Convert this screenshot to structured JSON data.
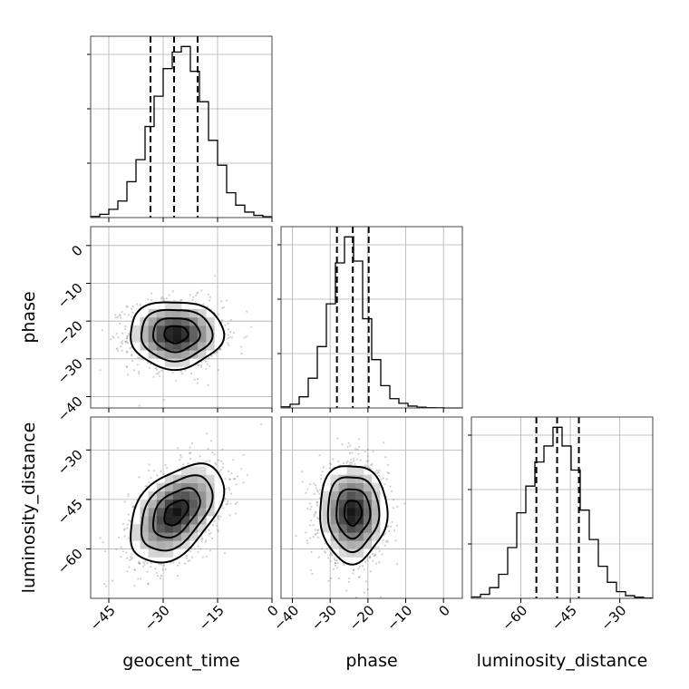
{
  "chart_data": {
    "type": "corner",
    "parameters": [
      "geocent_time",
      "phase",
      "luminosity_distance"
    ],
    "axis_labels": [
      "geocent_time",
      "phase",
      "luminosity_distance"
    ],
    "ranges": {
      "geocent_time": [
        -50,
        0
      ],
      "phase": [
        -43,
        5
      ],
      "luminosity_distance": [
        -75,
        -20
      ]
    },
    "ticks": {
      "geocent_time": {
        "values": [
          -45,
          -30,
          -15,
          0
        ],
        "labels": [
          "−45",
          "−30",
          "−15",
          "0"
        ]
      },
      "phase": {
        "values": [
          -40,
          -30,
          -20,
          -10,
          0
        ],
        "labels": [
          "−40",
          "−30",
          "−20",
          "−10",
          "0"
        ]
      },
      "luminosity_distance": {
        "values": [
          -60,
          -45,
          -30
        ],
        "labels": [
          "−60",
          "−45",
          "−30"
        ]
      }
    },
    "marginals": [
      {
        "parameter": "geocent_time",
        "bin_edges": [
          -50,
          -47.5,
          -45,
          -42.5,
          -40,
          -37.5,
          -35,
          -32.5,
          -30,
          -27.5,
          -25,
          -22.5,
          -20,
          -17.5,
          -15,
          -12.5,
          -10,
          -7.5,
          -5,
          -2.5,
          0
        ],
        "counts": [
          0.4,
          1.2,
          3,
          6,
          13,
          21,
          33,
          44,
          54,
          60,
          62,
          53,
          42,
          28,
          19,
          9,
          4.5,
          2,
          0.8,
          0.3
        ],
        "quantiles": [
          -33.5,
          -27.0,
          -20.5
        ]
      },
      {
        "parameter": "phase",
        "bin_edges": [
          -43,
          -40.6,
          -38.2,
          -35.8,
          -33.4,
          -31,
          -28.6,
          -26.2,
          -23.8,
          -21.4,
          -19,
          -16.6,
          -14.2,
          -11.8,
          -9.4,
          -7,
          -4.6,
          -2.2,
          0.2,
          2.6,
          5
        ],
        "counts": [
          0.6,
          2,
          6,
          16,
          33,
          56,
          78,
          92,
          79,
          48,
          26,
          12,
          5,
          2.5,
          1,
          0.4,
          0.2,
          0.1,
          0,
          0
        ],
        "quantiles": [
          -28.2,
          -24.0,
          -19.8
        ]
      },
      {
        "parameter": "luminosity_distance",
        "bin_edges": [
          -75,
          -72.25,
          -69.5,
          -66.75,
          -64,
          -61.25,
          -58.5,
          -55.75,
          -53,
          -50.25,
          -47.5,
          -44.75,
          -42,
          -39.25,
          -36.5,
          -33.75,
          -31,
          -28.25,
          -25.5,
          -22.75,
          -20
        ],
        "counts": [
          0.5,
          1.5,
          4,
          9,
          19,
          32,
          42,
          51,
          57,
          64,
          57,
          48,
          33,
          22,
          12,
          6,
          2.5,
          1,
          0.4,
          0.1
        ],
        "quantiles": [
          -55.3,
          -49.0,
          -42.4
        ]
      }
    ],
    "joints": [
      {
        "x": "geocent_time",
        "y": "phase",
        "center": [
          -26.5,
          -23.5
        ],
        "sigma": [
          6.5,
          4.5
        ],
        "rho": 0.0,
        "contour_levels": [
          0.12,
          0.39,
          0.68,
          0.86
        ]
      },
      {
        "x": "geocent_time",
        "y": "luminosity_distance",
        "center": [
          -26.5,
          -49.0
        ],
        "sigma": [
          6.5,
          7.5
        ],
        "rho": 0.45,
        "contour_levels": [
          0.12,
          0.39,
          0.68,
          0.86
        ]
      },
      {
        "x": "phase",
        "y": "luminosity_distance",
        "center": [
          -24.0,
          -49.0
        ],
        "sigma": [
          4.5,
          7.5
        ],
        "rho": 0.0,
        "contour_levels": [
          0.12,
          0.39,
          0.68,
          0.86
        ]
      }
    ],
    "grid": true
  }
}
